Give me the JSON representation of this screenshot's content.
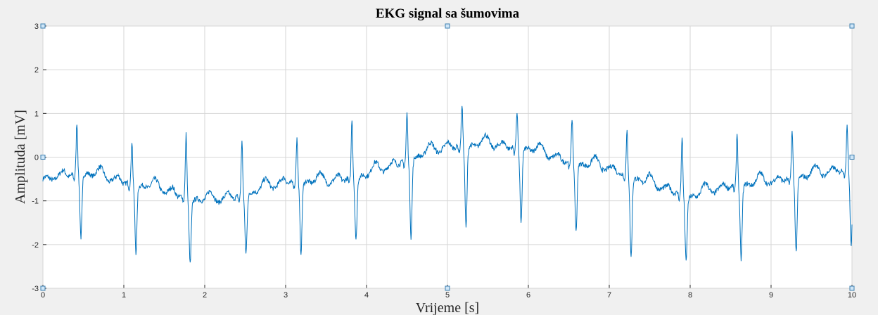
{
  "chart_data": {
    "type": "line",
    "title": "EKG signal sa šumovima",
    "xlabel": "Vrijeme [s]",
    "ylabel": "Amplituda [mV]",
    "xlim": [
      0,
      10
    ],
    "ylim": [
      -3,
      3
    ],
    "xticks": [
      "0",
      "1",
      "2",
      "3",
      "4",
      "5",
      "6",
      "7",
      "8",
      "9",
      "10"
    ],
    "yticks": [
      "-3",
      "-2",
      "-1",
      "0",
      "1",
      "2",
      "3"
    ],
    "grid": true,
    "line_color": "#0072bd",
    "series": [
      {
        "r_peak_times": [
          0.42,
          1.1,
          1.77,
          2.46,
          3.14,
          3.82,
          4.5,
          5.18,
          5.86,
          6.54,
          7.22,
          7.9,
          8.58,
          9.26,
          9.94
        ],
        "r_peak_values": [
          0.78,
          0.35,
          0.5,
          0.35,
          0.42,
          0.88,
          1.0,
          1.2,
          1.05,
          0.9,
          0.6,
          0.48,
          0.55,
          0.6,
          0.7
        ],
        "s_trough_values": [
          -1.8,
          -2.12,
          -2.37,
          -2.18,
          -2.15,
          -1.88,
          -1.82,
          -1.58,
          -1.48,
          -1.65,
          -2.22,
          -2.33,
          -2.3,
          -2.15,
          -2.0
        ],
        "baseline_x": [
          0,
          0.5,
          1.0,
          1.5,
          2.0,
          2.5,
          3.0,
          3.5,
          4.0,
          4.5,
          5.0,
          5.5,
          6.0,
          6.5,
          7.0,
          7.5,
          8.0,
          8.5,
          9.0,
          9.5,
          10.0
        ],
        "baseline_y": [
          -0.5,
          -0.4,
          -0.6,
          -0.8,
          -1.05,
          -0.9,
          -0.6,
          -0.6,
          -0.45,
          -0.1,
          0.2,
          0.25,
          0.15,
          -0.15,
          -0.3,
          -0.65,
          -0.95,
          -0.7,
          -0.6,
          -0.45,
          -0.3
        ]
      }
    ]
  }
}
